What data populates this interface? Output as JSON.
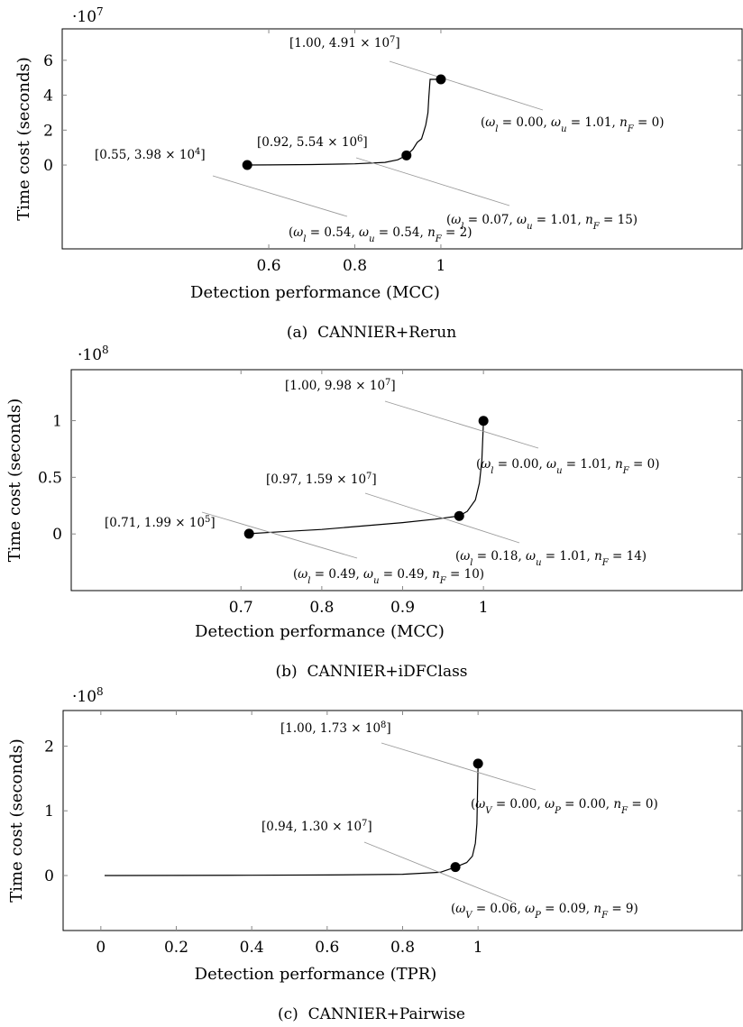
{
  "chart_data": [
    {
      "type": "line",
      "caption": {
        "label": "(a)",
        "main": "CANNIER+",
        "small_caps": "Rerun"
      },
      "xlabel": "Detection performance (MCC)",
      "ylabel": "Time cost (seconds)",
      "y_exponent_base": "·10",
      "y_exponent_power": "7",
      "xlim": [
        0.12,
        1.7
      ],
      "ylim": [
        -4.8,
        7.8
      ],
      "xticks": [
        0.6,
        0.8,
        1
      ],
      "xtick_labels": [
        "0.6",
        "0.8",
        "1"
      ],
      "yticks": [
        0,
        2,
        4,
        6
      ],
      "ytick_labels": [
        "0",
        "2",
        "4",
        "6"
      ],
      "series": [
        {
          "points": [
            [
              0.55,
              0.004
            ],
            [
              0.6,
              0.01
            ],
            [
              0.7,
              0.03
            ],
            [
              0.8,
              0.07
            ],
            [
              0.87,
              0.15
            ],
            [
              0.9,
              0.3
            ],
            [
              0.92,
              0.554
            ],
            [
              0.935,
              0.9
            ],
            [
              0.945,
              1.3
            ],
            [
              0.955,
              1.5
            ],
            [
              0.96,
              1.9
            ],
            [
              0.965,
              2.3
            ],
            [
              0.97,
              3.0
            ],
            [
              0.972,
              3.9
            ],
            [
              0.975,
              4.91
            ],
            [
              0.99,
              4.91
            ],
            [
              1.0,
              4.91
            ]
          ]
        }
      ],
      "annotations": [
        {
          "point": [
            0.55,
            0.004
          ],
          "point_label": "[0.55, 3.98 × 10",
          "point_label_power": "4",
          "point_label_end": "]",
          "params": "(ω_l = 0.54, ω_u = 0.54, n_F = 2)"
        },
        {
          "point": [
            0.92,
            0.554
          ],
          "point_label": "[0.92, 5.54 × 10",
          "point_label_power": "6",
          "point_label_end": "]",
          "params": "(ω_l = 0.07, ω_u = 1.01, n_F = 15)"
        },
        {
          "point": [
            1.0,
            4.91
          ],
          "point_label": "[1.00, 4.91 × 10",
          "point_label_power": "7",
          "point_label_end": "]",
          "params": "(ω_l = 0.00, ω_u = 1.01, n_F = 0)"
        }
      ]
    },
    {
      "type": "line",
      "caption": {
        "label": "(b)",
        "main": "CANNIER+",
        "small_caps": "iDFClass"
      },
      "xlabel": "Detection performance (MCC)",
      "ylabel": "Time cost (seconds)",
      "y_exponent_base": "·10",
      "y_exponent_power": "8",
      "xlim": [
        0.49,
        1.32
      ],
      "ylim": [
        -0.5,
        1.45
      ],
      "xticks": [
        0.7,
        0.8,
        0.9,
        1
      ],
      "xtick_labels": [
        "0.7",
        "0.8",
        "0.9",
        "1"
      ],
      "yticks": [
        0,
        0.5,
        1
      ],
      "ytick_labels": [
        "0",
        "0.5",
        "1"
      ],
      "series": [
        {
          "points": [
            [
              0.71,
              0.002
            ],
            [
              0.75,
              0.02
            ],
            [
              0.8,
              0.04
            ],
            [
              0.85,
              0.07
            ],
            [
              0.9,
              0.1
            ],
            [
              0.94,
              0.13
            ],
            [
              0.97,
              0.159
            ],
            [
              0.98,
              0.2
            ],
            [
              0.99,
              0.3
            ],
            [
              0.995,
              0.45
            ],
            [
              0.998,
              0.65
            ],
            [
              1.0,
              0.998
            ]
          ]
        }
      ],
      "annotations": [
        {
          "point": [
            0.71,
            0.002
          ],
          "point_label": "[0.71, 1.99 × 10",
          "point_label_power": "5",
          "point_label_end": "]",
          "params": "(ω_l = 0.49, ω_u = 0.49, n_F = 10)"
        },
        {
          "point": [
            0.97,
            0.159
          ],
          "point_label": "[0.97, 1.59 × 10",
          "point_label_power": "7",
          "point_label_end": "]",
          "params": "(ω_l = 0.18, ω_u = 1.01, n_F = 14)"
        },
        {
          "point": [
            1.0,
            0.998
          ],
          "point_label": "[1.00, 9.98 × 10",
          "point_label_power": "7",
          "point_label_end": "]",
          "params": "(ω_l = 0.00, ω_u = 1.01, n_F = 0)"
        }
      ]
    },
    {
      "type": "line",
      "caption": {
        "label": "(c)",
        "main": "CANNIER+",
        "small_caps": "Pairwise"
      },
      "xlabel": "Detection performance (TPR)",
      "ylabel": "Time cost (seconds)",
      "y_exponent_base": "·10",
      "y_exponent_power": "8",
      "xlim": [
        -0.1,
        1.7
      ],
      "ylim": [
        -0.85,
        2.55
      ],
      "xticks": [
        0,
        0.2,
        0.4,
        0.6,
        0.8,
        1
      ],
      "xtick_labels": [
        "0",
        "0.2",
        "0.4",
        "0.6",
        "0.8",
        "1"
      ],
      "yticks": [
        0,
        1,
        2
      ],
      "ytick_labels": [
        "0",
        "1",
        "2"
      ],
      "series": [
        {
          "points": [
            [
              0.01,
              0.0
            ],
            [
              0.2,
              0.002
            ],
            [
              0.4,
              0.004
            ],
            [
              0.6,
              0.008
            ],
            [
              0.8,
              0.02
            ],
            [
              0.9,
              0.05
            ],
            [
              0.94,
              0.13
            ],
            [
              0.97,
              0.2
            ],
            [
              0.985,
              0.3
            ],
            [
              0.993,
              0.5
            ],
            [
              0.997,
              0.8
            ],
            [
              1.0,
              1.73
            ]
          ]
        }
      ],
      "annotations": [
        {
          "point": [
            0.94,
            0.13
          ],
          "point_label": "[0.94, 1.30 × 10",
          "point_label_power": "7",
          "point_label_end": "]",
          "params": "(ω_V = 0.06, ω_P = 0.09, n_F = 9)"
        },
        {
          "point": [
            1.0,
            1.73
          ],
          "point_label": "[1.00, 1.73 × 10",
          "point_label_power": "8",
          "point_label_end": "]",
          "params": "(ω_V = 0.00, ω_P = 0.00, n_F = 0)"
        }
      ]
    }
  ]
}
